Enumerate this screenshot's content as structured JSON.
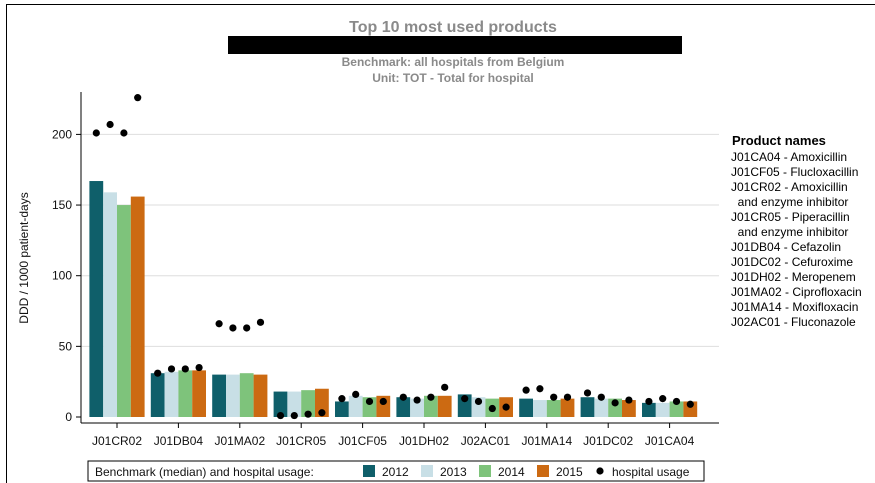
{
  "chart_data": {
    "type": "bar",
    "title": "Top 10 most used products",
    "subtitle_1": "Benchmark: all hospitals from Belgium",
    "subtitle_2": "Unit: TOT - Total for hospital",
    "ylabel": "DDD / 1000 patient-days",
    "ylim": [
      0,
      230
    ],
    "yticks": [
      0,
      50,
      100,
      150,
      200
    ],
    "grid": true,
    "categories": [
      "J01CR02",
      "J01DB04",
      "J01MA02",
      "J01CR05",
      "J01CF05",
      "J01DH02",
      "J02AC01",
      "J01MA14",
      "J01DC02",
      "J01CA04"
    ],
    "series": [
      {
        "name": "2012",
        "color": "#0f5f6a",
        "values": [
          167,
          31,
          30,
          18,
          11,
          14,
          16,
          13,
          14,
          10
        ]
      },
      {
        "name": "2013",
        "color": "#c8dfe6",
        "values": [
          159,
          32,
          30,
          18,
          15,
          13,
          14,
          12,
          13,
          10
        ]
      },
      {
        "name": "2014",
        "color": "#7ec37b",
        "values": [
          150,
          33,
          31,
          19,
          14,
          15,
          13,
          12,
          13,
          11
        ]
      },
      {
        "name": "2015",
        "color": "#cc6a12",
        "values": [
          156,
          33,
          30,
          20,
          15,
          15,
          14,
          13,
          12,
          11
        ]
      }
    ],
    "hospital_usage": {
      "name": "hospital usage",
      "values": [
        [
          201,
          207,
          201,
          226
        ],
        [
          31,
          34,
          34,
          35
        ],
        [
          66,
          63,
          63,
          67
        ],
        [
          1,
          1,
          2,
          3
        ],
        [
          13,
          16,
          11,
          11
        ],
        [
          14,
          12,
          14,
          21
        ],
        [
          13,
          11,
          6,
          7
        ],
        [
          19,
          20,
          14,
          14
        ],
        [
          17,
          14,
          10,
          12
        ],
        [
          11,
          13,
          11,
          9
        ]
      ]
    },
    "legend": {
      "position": "bottom",
      "label": "Benchmark (median) and hospital usage:"
    },
    "product_names": {
      "title": "Product names",
      "lines": [
        "J01CA04 - Amoxicillin",
        "J01CF05 - Flucloxacillin",
        "J01CR02 - Amoxicillin",
        "  and enzyme inhibitor",
        "J01CR05 - Piperacillin",
        "  and enzyme inhibitor",
        "J01DB04 - Cefazolin",
        "J01DC02 - Cefuroxime",
        "J01DH02 - Meropenem",
        "J01MA02 - Ciprofloxacin",
        "J01MA14 - Moxifloxacin",
        "J02AC01 - Fluconazole"
      ]
    },
    "colors": {
      "grid": "#dedede",
      "title": "#8a8a8a",
      "redaction": "#000000"
    }
  }
}
